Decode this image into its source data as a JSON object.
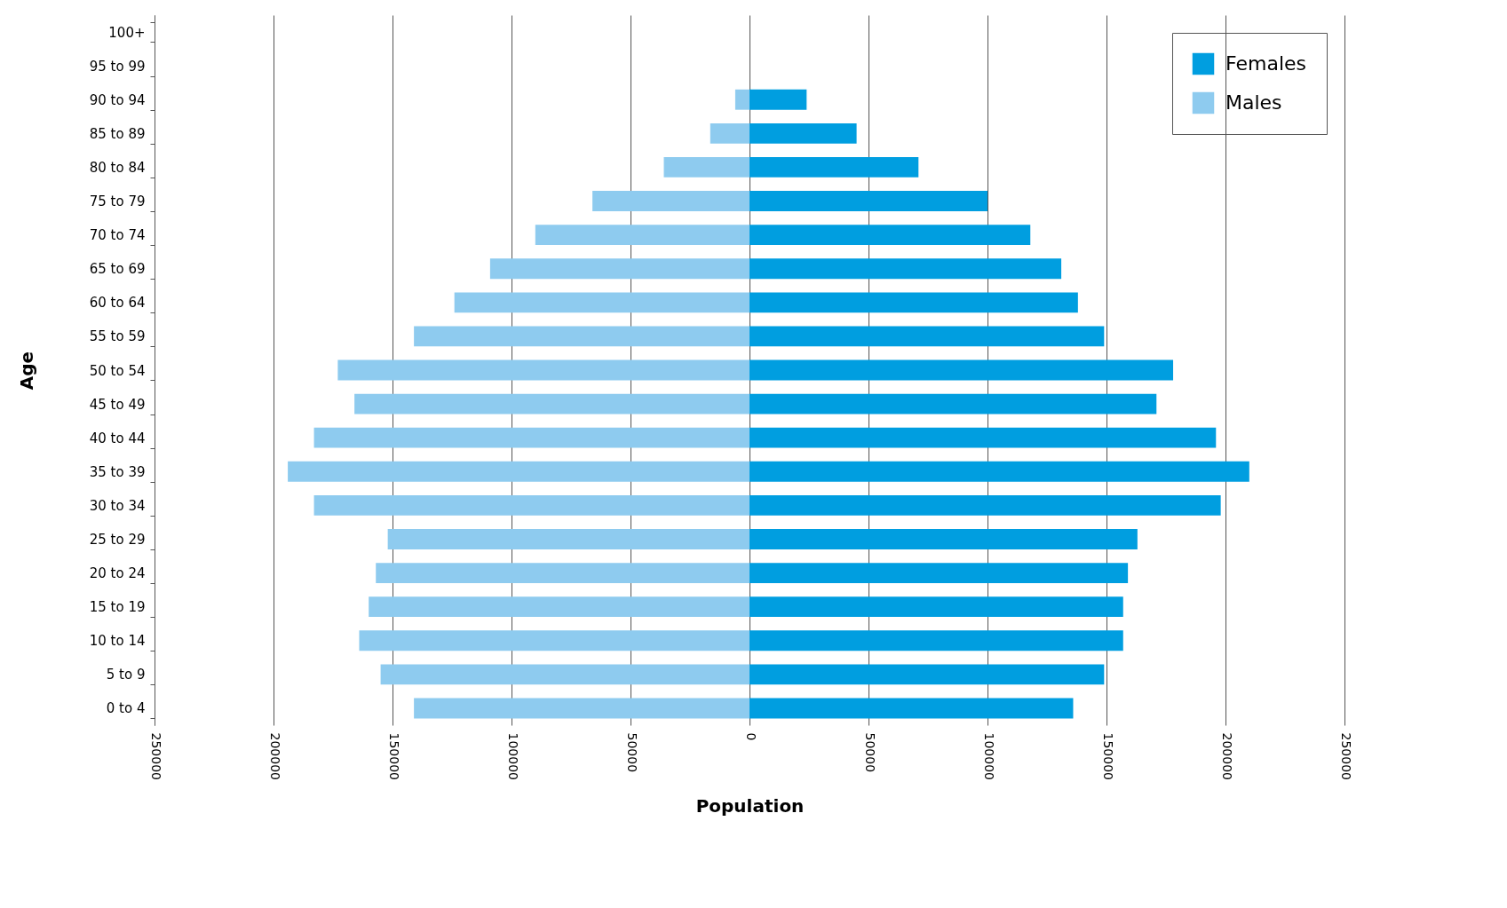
{
  "chart_data": {
    "type": "bar",
    "orientation": "horizontal",
    "xlabel": "Population",
    "ylabel": "Age",
    "categories": [
      "100+",
      "95 to 99",
      "90 to 94",
      "85 to 89",
      "80 to 84",
      "75 to 79",
      "70 to 74",
      "65 to 69",
      "60 to 64",
      "55 to 59",
      "50 to 54",
      "45 to 49",
      "40 to 44",
      "35 to 39",
      "30 to 34",
      "25 to 29",
      "20 to 24",
      "15 to 19",
      "10 to 14",
      "5 to 9",
      "0 to 4"
    ],
    "series": [
      {
        "name": "Females",
        "color": "#009ee0",
        "values": [
          null,
          null,
          24000,
          45000,
          71000,
          100000,
          118000,
          131000,
          138000,
          149000,
          178000,
          171000,
          196000,
          210000,
          198000,
          163000,
          159000,
          157000,
          157000,
          149000,
          136000
        ]
      },
      {
        "name": "Males",
        "color": "#8ecbef",
        "values": [
          null,
          null,
          -6000,
          -16500,
          -36000,
          -66000,
          -90000,
          -109000,
          -124000,
          -141000,
          -173000,
          -166000,
          -183000,
          -194000,
          -183000,
          -152000,
          -157000,
          -160000,
          -164000,
          -155000,
          -141000
        ]
      }
    ],
    "xlim": [
      -250000,
      250000
    ],
    "xticks": [
      {
        "value": -250000,
        "label": "250000"
      },
      {
        "value": -200000,
        "label": "200000"
      },
      {
        "value": -150000,
        "label": "150000"
      },
      {
        "value": -100000,
        "label": "100000"
      },
      {
        "value": -50000,
        "label": "50000"
      },
      0,
      50000,
      100000,
      150000,
      200000,
      250000
    ],
    "stacked": true,
    "grid": "x",
    "legend": "top right"
  }
}
